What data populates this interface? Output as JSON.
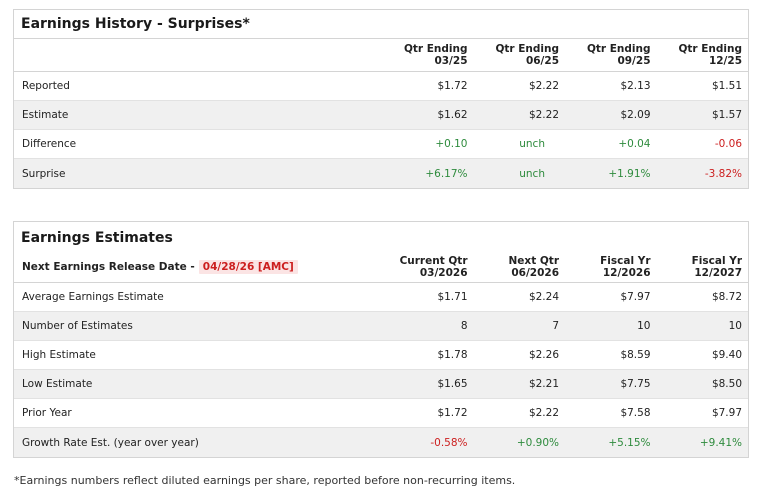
{
  "history": {
    "title": "Earnings History - Surprises*",
    "columns": [
      {
        "line1": "Qtr Ending",
        "line2": "03/25"
      },
      {
        "line1": "Qtr Ending",
        "line2": "06/25"
      },
      {
        "line1": "Qtr Ending",
        "line2": "09/25"
      },
      {
        "line1": "Qtr Ending",
        "line2": "12/25"
      }
    ],
    "rows": [
      {
        "label": "Reported",
        "values": [
          "$1.72",
          "$2.22",
          "$2.13",
          "$1.51"
        ]
      },
      {
        "label": "Estimate",
        "values": [
          "$1.62",
          "$2.22",
          "$2.09",
          "$1.57"
        ]
      },
      {
        "label": "Difference",
        "values": [
          "+0.10",
          "unch",
          "+0.04",
          "-0.06"
        ]
      },
      {
        "label": "Surprise",
        "values": [
          "+6.17%",
          "unch",
          "+1.91%",
          "-3.82%"
        ]
      }
    ]
  },
  "estimates": {
    "title": "Earnings Estimates",
    "release_label": "Next Earnings Release Date -",
    "release_date": "04/28/26 [AMC]",
    "columns": [
      {
        "line1": "Current Qtr",
        "line2": "03/2026"
      },
      {
        "line1": "Next Qtr",
        "line2": "06/2026"
      },
      {
        "line1": "Fiscal Yr",
        "line2": "12/2026"
      },
      {
        "line1": "Fiscal Yr",
        "line2": "12/2027"
      }
    ],
    "rows": [
      {
        "label": "Average Earnings Estimate",
        "values": [
          "$1.71",
          "$2.24",
          "$7.97",
          "$8.72"
        ]
      },
      {
        "label": "Number of Estimates",
        "values": [
          "8",
          "7",
          "10",
          "10"
        ]
      },
      {
        "label": "High Estimate",
        "values": [
          "$1.78",
          "$2.26",
          "$8.59",
          "$9.40"
        ]
      },
      {
        "label": "Low Estimate",
        "values": [
          "$1.65",
          "$2.21",
          "$7.75",
          "$8.50"
        ]
      },
      {
        "label": "Prior Year",
        "values": [
          "$1.72",
          "$2.22",
          "$7.58",
          "$7.97"
        ]
      },
      {
        "label": "Growth Rate Est. (year over year)",
        "values": [
          "-0.58%",
          "+0.90%",
          "+5.15%",
          "+9.41%"
        ]
      }
    ]
  },
  "footnote": "*Earnings numbers reflect diluted earnings per share, reported before non-recurring items.",
  "colors": {
    "positive": "#2e8b3d",
    "negative": "#cc1f1f",
    "row_alt": "#f0f0f0",
    "badge_bg": "#fbe4e4"
  }
}
